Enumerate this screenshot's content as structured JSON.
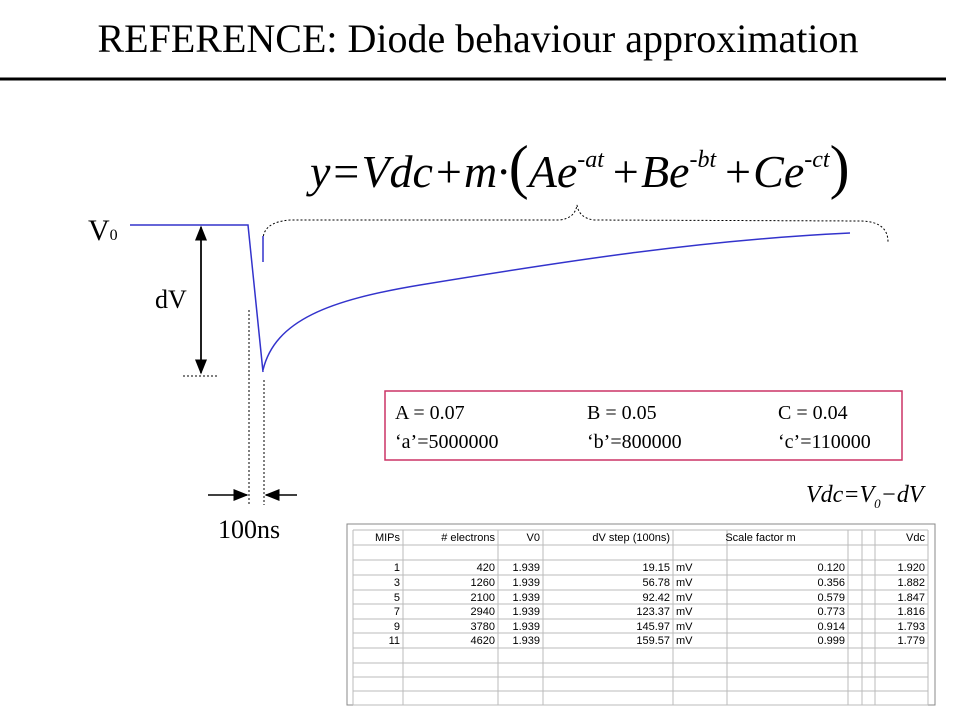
{
  "header": {
    "title": "REFERENCE: Diode behaviour approximation"
  },
  "equation": {
    "parts": [
      "y=Vdc+m·",
      "(",
      "Ae",
      "-at",
      "+Be",
      "-bt",
      "+Ce",
      "-ct",
      ")"
    ]
  },
  "labels": {
    "v0": "V",
    "v0_sub": "0",
    "dv": "dV",
    "time": "100ns"
  },
  "parameters": {
    "rows": [
      [
        "A = 0.07",
        "B = 0.05",
        "C = 0.04"
      ],
      [
        "‘a’=5000000",
        "‘b’=800000",
        "‘c’=110000"
      ]
    ]
  },
  "vdc_formula": {
    "lhs": "Vdc=V",
    "sub": "0",
    "rhs": "−dV"
  },
  "table": {
    "header": [
      "MIPs",
      "# electrons",
      "V0",
      "dV step (100ns)",
      "Scale factor m",
      "Vdc"
    ],
    "rows": [
      [
        "1",
        "420",
        "1.939",
        "19.15",
        "mV",
        "0.120",
        "1.920"
      ],
      [
        "3",
        "1260",
        "1.939",
        "56.78",
        "mV",
        "0.356",
        "1.882"
      ],
      [
        "5",
        "2100",
        "1.939",
        "92.42",
        "mV",
        "0.579",
        "1.847"
      ],
      [
        "7",
        "2940",
        "1.939",
        "123.37",
        "mV",
        "0.773",
        "1.816"
      ],
      [
        "9",
        "3780",
        "1.939",
        "145.97",
        "mV",
        "0.914",
        "1.793"
      ],
      [
        "11",
        "4620",
        "1.939",
        "159.57",
        "mV",
        "0.999",
        "1.779"
      ]
    ]
  }
}
